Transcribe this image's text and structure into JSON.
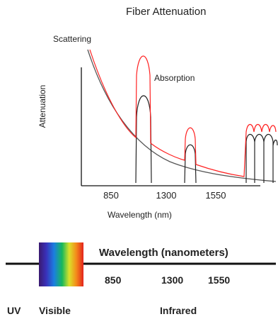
{
  "top_chart": {
    "title": "Fiber Attenuation",
    "annotations": {
      "scattering": "Scattering",
      "absorption": "Absorption"
    },
    "ylabel": "Attenuation",
    "xlabel": "Wavelength  (nm)",
    "xticks": [
      "850",
      "1300",
      "1550"
    ]
  },
  "spectrum": {
    "title": "Wavelength (nanometers)",
    "ticks": [
      "850",
      "1300",
      "1550"
    ],
    "regions": {
      "uv": "UV",
      "visible": "Visible",
      "infrared": "Infrared"
    }
  },
  "colors": {
    "scattering_curve": "#555555",
    "total_curve": "#ff2222",
    "absorption_peaks": "#222222",
    "axes": "#111111"
  }
}
